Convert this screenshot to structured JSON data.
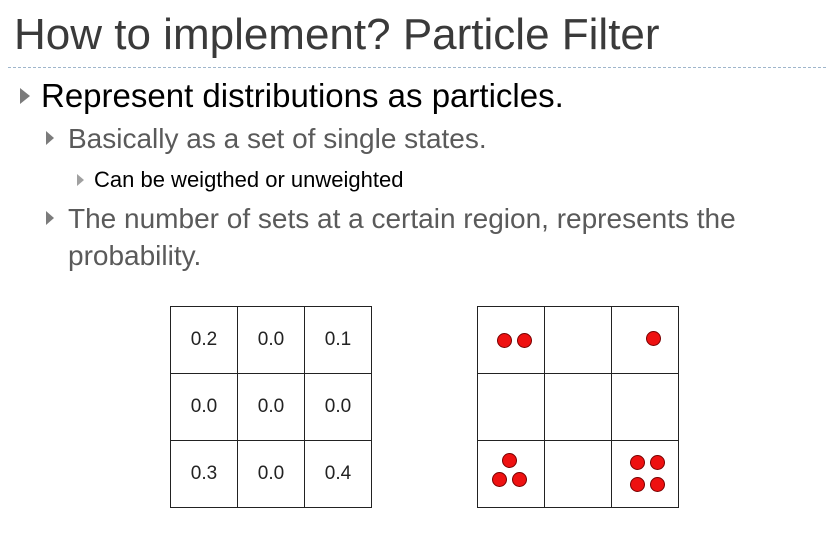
{
  "slide": {
    "title": "How to implement? Particle Filter"
  },
  "bullets": {
    "level1": "Represent distributions as particles.",
    "level2_a": "Basically as a set of single states.",
    "level3_a": "Can be weigthed or unweighted",
    "level2_b_line1": "The number of sets at a certain region, represents the",
    "level2_b_line2": "probability."
  },
  "probability_grid": {
    "rows": [
      [
        "0.2",
        "0.0",
        "0.1"
      ],
      [
        "0.0",
        "0.0",
        "0.0"
      ],
      [
        "0.3",
        "0.0",
        "0.4"
      ]
    ]
  },
  "particle_grid": {
    "particle_color": "#ee1111",
    "counts": [
      [
        2,
        0,
        1
      ],
      [
        0,
        0,
        0
      ],
      [
        3,
        0,
        4
      ]
    ]
  }
}
